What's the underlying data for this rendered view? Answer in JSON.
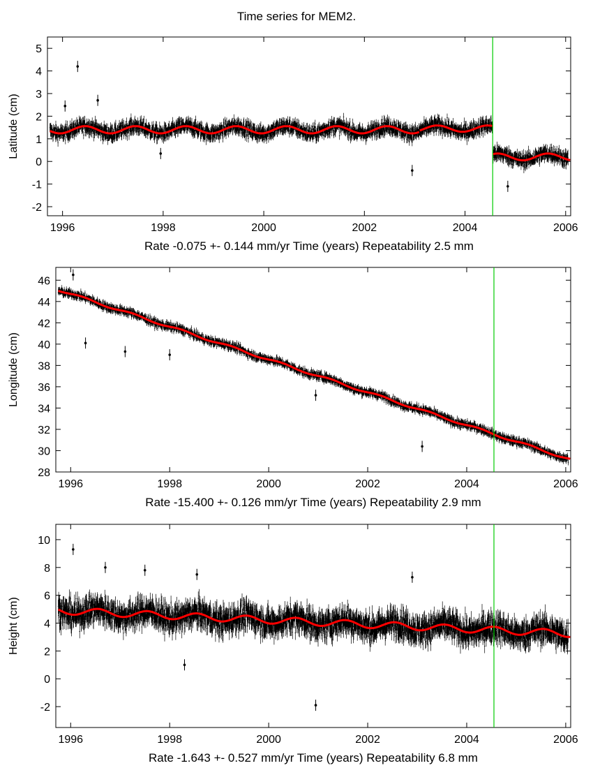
{
  "title": "Time series for MEM2.",
  "chart_data": [
    {
      "type": "line",
      "name": "latitude",
      "ylabel": "Latitude (cm)",
      "footer": {
        "rate": "Rate -0.075 +- 0.144 mm/yr",
        "xlabel": "Time (years)",
        "repeatability": "Repeatability 2.5 mm"
      },
      "xlim": [
        1995.7,
        2006.1
      ],
      "ylim": [
        -2.4,
        5.5
      ],
      "xticks": [
        "1996",
        "1998",
        "2000",
        "2002",
        "2004",
        "2006"
      ],
      "yticks": [
        "-2",
        "-1",
        "0",
        "1",
        "2",
        "3",
        "4",
        "5"
      ],
      "marker_year": 2004.55,
      "fit_segments": [
        {
          "t0": 1995.75,
          "t1": 2003.1,
          "offset": 1.4,
          "slope": 0.0,
          "amp": 0.16,
          "period": 1.0,
          "phase": 0.2
        },
        {
          "t0": 2003.1,
          "t1": 2004.55,
          "offset": 1.45,
          "slope": 0.0,
          "amp": 0.14,
          "period": 1.0,
          "phase": 0.2
        },
        {
          "t0": 2004.55,
          "t1": 2006.1,
          "offset": 0.2,
          "slope": 0.0,
          "amp": 0.15,
          "period": 1.0,
          "phase": 0.4
        }
      ],
      "scatter": 0.3,
      "outliers": [
        [
          1996.3,
          4.2
        ],
        [
          1996.05,
          2.45
        ],
        [
          1996.7,
          2.7
        ],
        [
          1997.95,
          0.35
        ],
        [
          2002.95,
          -0.4
        ],
        [
          2004.85,
          -1.1
        ]
      ]
    },
    {
      "type": "line",
      "name": "longitude",
      "ylabel": "Longitude (cm)",
      "footer": {
        "rate": "Rate -15.400 +- 0.126 mm/yr",
        "xlabel": "Time (years)",
        "repeatability": "Repeatability 2.9 mm"
      },
      "xlim": [
        1995.7,
        2006.1
      ],
      "ylim": [
        28,
        47.2
      ],
      "xticks": [
        "1996",
        "1998",
        "2000",
        "2002",
        "2004",
        "2006"
      ],
      "yticks": [
        "28",
        "30",
        "32",
        "34",
        "36",
        "38",
        "40",
        "42",
        "44",
        "46"
      ],
      "marker_year": 2004.55,
      "fit_segments": [
        {
          "t0": 1995.75,
          "t1": 2006.1,
          "offset": 45.1,
          "slope": -1.54,
          "amp": 0.1,
          "period": 1.0,
          "phase": 0.0
        }
      ],
      "scatter": 0.35,
      "outliers": [
        [
          1996.3,
          40.1
        ],
        [
          1997.1,
          39.3
        ],
        [
          1998.0,
          39.0
        ],
        [
          2000.95,
          35.2
        ],
        [
          2003.1,
          30.4
        ],
        [
          1996.05,
          46.5
        ]
      ]
    },
    {
      "type": "line",
      "name": "height",
      "ylabel": "Height (cm)",
      "footer": {
        "rate": "Rate -1.643 +- 0.527 mm/yr",
        "xlabel": "Time (years)",
        "repeatability": "Repeatability 6.8 mm"
      },
      "xlim": [
        1995.7,
        2006.1
      ],
      "ylim": [
        -3.5,
        11.1
      ],
      "xticks": [
        "1996",
        "1998",
        "2000",
        "2002",
        "2004",
        "2006"
      ],
      "yticks": [
        "-2",
        "0",
        "2",
        "4",
        "6",
        "8",
        "10"
      ],
      "marker_year": 2004.55,
      "fit_segments": [
        {
          "t0": 1995.75,
          "t1": 2006.1,
          "offset": 4.9,
          "slope": -0.16,
          "amp": 0.25,
          "period": 1.0,
          "phase": 0.3
        }
      ],
      "scatter": 0.9,
      "outliers": [
        [
          1996.05,
          9.3
        ],
        [
          1996.7,
          8.0
        ],
        [
          1997.5,
          7.8
        ],
        [
          1998.55,
          7.5
        ],
        [
          2000.95,
          -1.9
        ],
        [
          2002.9,
          7.3
        ],
        [
          1998.3,
          1.0
        ]
      ]
    }
  ]
}
